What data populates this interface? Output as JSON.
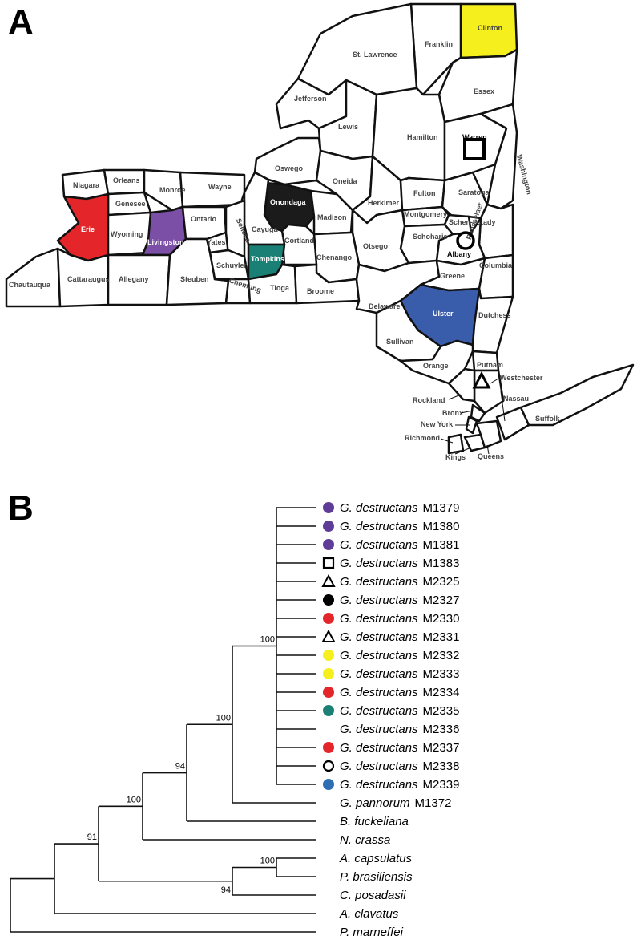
{
  "panels": {
    "a": "A",
    "b": "B"
  },
  "colors": {
    "erie": "#e4252a",
    "livingston": "#7b4fa5",
    "onondaga": "#1b1b1b",
    "tompkins": "#1a8076",
    "clinton": "#f5ef1e",
    "ulster": "#3a5dab",
    "marker_purple": "#5f3c97",
    "marker_red": "#e4252a",
    "marker_yellow": "#f5ef1e",
    "marker_teal": "#1a8076",
    "marker_blue": "#2e6fb4",
    "marker_black": "#000000"
  },
  "map": {
    "highlighted": [
      "Erie",
      "Livingston",
      "Onondaga",
      "Tompkins",
      "Clinton",
      "Ulster"
    ],
    "symbols": {
      "Warren": "square-icon",
      "Albany": "circle-icon",
      "Westchester": "triangle-icon"
    },
    "counties": [
      "Clinton",
      "Franklin",
      "St. Lawrence",
      "Essex",
      "Jefferson",
      "Lewis",
      "Hamilton",
      "Warren",
      "Washington",
      "Oswego",
      "Oneida",
      "Niagara",
      "Orleans",
      "Monroe",
      "Wayne",
      "Onondaga",
      "Genesee",
      "Herkimer",
      "Fulton",
      "Saratoga",
      "Erie",
      "Madison",
      "Montgomery",
      "Schen-ectady",
      "Livingston",
      "Wyoming",
      "Ontario",
      "Cayuga",
      "Otsego",
      "Schoharie",
      "Rensselaer",
      "Yates",
      "Seneca",
      "Cortland",
      "Albany",
      "Tompkins",
      "Chenango",
      "Columbia",
      "Schuyler",
      "Chautauqua",
      "Cattaraugus",
      "Allegany",
      "Steuben",
      "Chemung",
      "Tioga",
      "Broome",
      "Greene",
      "Delaware",
      "Ulster",
      "Dutchess",
      "Sullivan",
      "Putnam",
      "Orange",
      "Westchester",
      "Rockland",
      "Nassau",
      "Bronx",
      "Suffolk",
      "New York",
      "Richmond",
      "Kings",
      "Queens"
    ]
  },
  "tree": {
    "genus_abbrev_gd": "G. destructans",
    "taxa": [
      {
        "genus": "G. destructans",
        "id": "M1379",
        "marker": "circle-purple"
      },
      {
        "genus": "G. destructans",
        "id": "M1380",
        "marker": "circle-purple"
      },
      {
        "genus": "G. destructans",
        "id": "M1381",
        "marker": "circle-purple"
      },
      {
        "genus": "G. destructans",
        "id": "M1383",
        "marker": "square-open"
      },
      {
        "genus": "G. destructans",
        "id": "M2325",
        "marker": "triangle-open"
      },
      {
        "genus": "G. destructans",
        "id": "M2327",
        "marker": "circle-black"
      },
      {
        "genus": "G. destructans",
        "id": "M2330",
        "marker": "circle-red"
      },
      {
        "genus": "G. destructans",
        "id": "M2331",
        "marker": "triangle-open"
      },
      {
        "genus": "G. destructans",
        "id": "M2332",
        "marker": "circle-yellow"
      },
      {
        "genus": "G. destructans",
        "id": "M2333",
        "marker": "circle-yellow"
      },
      {
        "genus": "G. destructans",
        "id": "M2334",
        "marker": "circle-red"
      },
      {
        "genus": "G. destructans",
        "id": "M2335",
        "marker": "circle-teal"
      },
      {
        "genus": "G. destructans",
        "id": "M2336",
        "marker": "none"
      },
      {
        "genus": "G. destructans",
        "id": "M2337",
        "marker": "circle-red"
      },
      {
        "genus": "G. destructans",
        "id": "M2338",
        "marker": "circle-open"
      },
      {
        "genus": "G. destructans",
        "id": "M2339",
        "marker": "circle-blue"
      },
      {
        "genus": "G. pannorum",
        "id": "M1372",
        "marker": "none"
      },
      {
        "genus": "B. fuckeliana",
        "id": "",
        "marker": "none"
      },
      {
        "genus": "N. crassa",
        "id": "",
        "marker": "none"
      },
      {
        "genus": "A. capsulatus",
        "id": "",
        "marker": "none"
      },
      {
        "genus": "P. brasiliensis",
        "id": "",
        "marker": "none"
      },
      {
        "genus": "C. posadasii",
        "id": "",
        "marker": "none"
      },
      {
        "genus": "A. clavatus",
        "id": "",
        "marker": "none"
      },
      {
        "genus": "P. marneffei",
        "id": "",
        "marker": "none"
      }
    ],
    "bootstrap": [
      "100",
      "100",
      "94",
      "100",
      "91",
      "100",
      "94"
    ]
  }
}
